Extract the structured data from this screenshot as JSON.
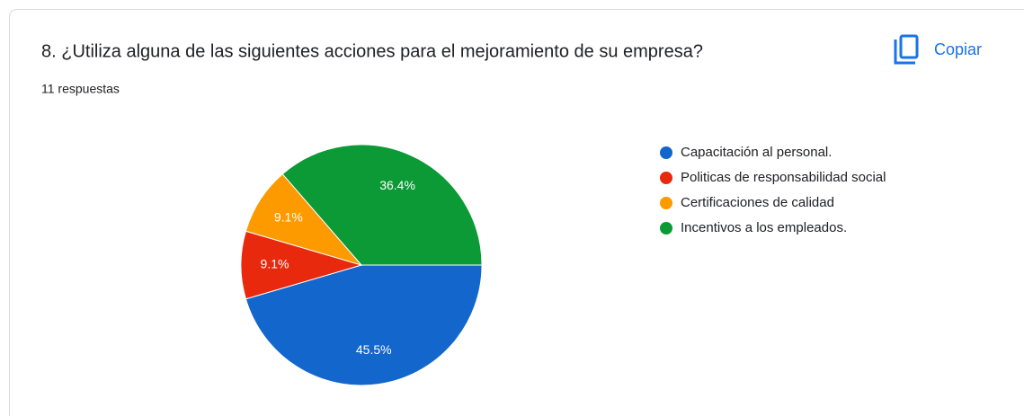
{
  "chart_data": {
    "type": "pie",
    "title": "8. ¿Utiliza alguna de las siguientes acciones para el mejoramiento de su empresa?",
    "subtitle": "11 respuestas",
    "button": "Copiar",
    "categories": [
      "Capacitación al personal.",
      "Politicas de responsabilidad social",
      "Certificaciones de calidad",
      "Incentivos a los empleados."
    ],
    "values": [
      45.5,
      9.1,
      9.1,
      36.4
    ],
    "value_labels": [
      "45.5%",
      "9.1%",
      "9.1%",
      "36.4%"
    ],
    "colors": [
      "#1366cb",
      "#e8290e",
      "#fd9a00",
      "#0b9a36"
    ],
    "legend": "right"
  }
}
